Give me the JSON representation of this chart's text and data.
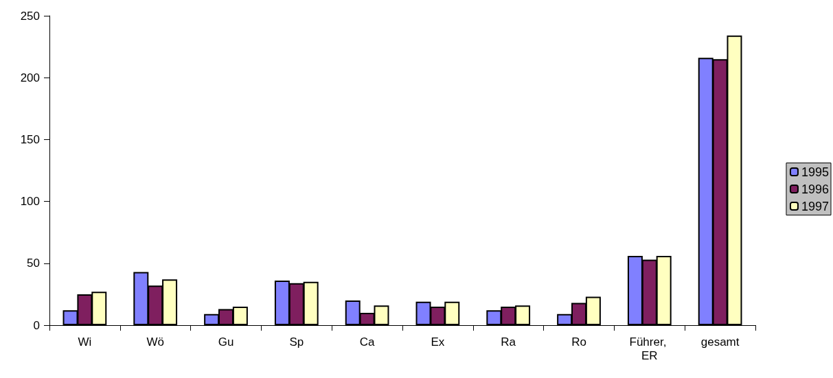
{
  "chart_data": {
    "type": "bar",
    "categories": [
      "Wi",
      "Wö",
      "Gu",
      "Sp",
      "Ca",
      "Ex",
      "Ra",
      "Ro",
      "Führer, ER",
      "gesamt"
    ],
    "series": [
      {
        "name": "1995",
        "color": "#8080ff",
        "values": [
          12,
          43,
          9,
          36,
          20,
          19,
          12,
          9,
          56,
          216
        ]
      },
      {
        "name": "1996",
        "color": "#7f1f5f",
        "values": [
          25,
          32,
          13,
          34,
          10,
          15,
          15,
          18,
          53,
          215
        ]
      },
      {
        "name": "1997",
        "color": "#ffffc0",
        "values": [
          27,
          37,
          15,
          35,
          16,
          19,
          16,
          23,
          56,
          234
        ]
      }
    ],
    "ylim": [
      0,
      250
    ],
    "yticks": [
      0,
      50,
      100,
      150,
      200,
      250
    ],
    "grid": false,
    "legend": "right"
  }
}
